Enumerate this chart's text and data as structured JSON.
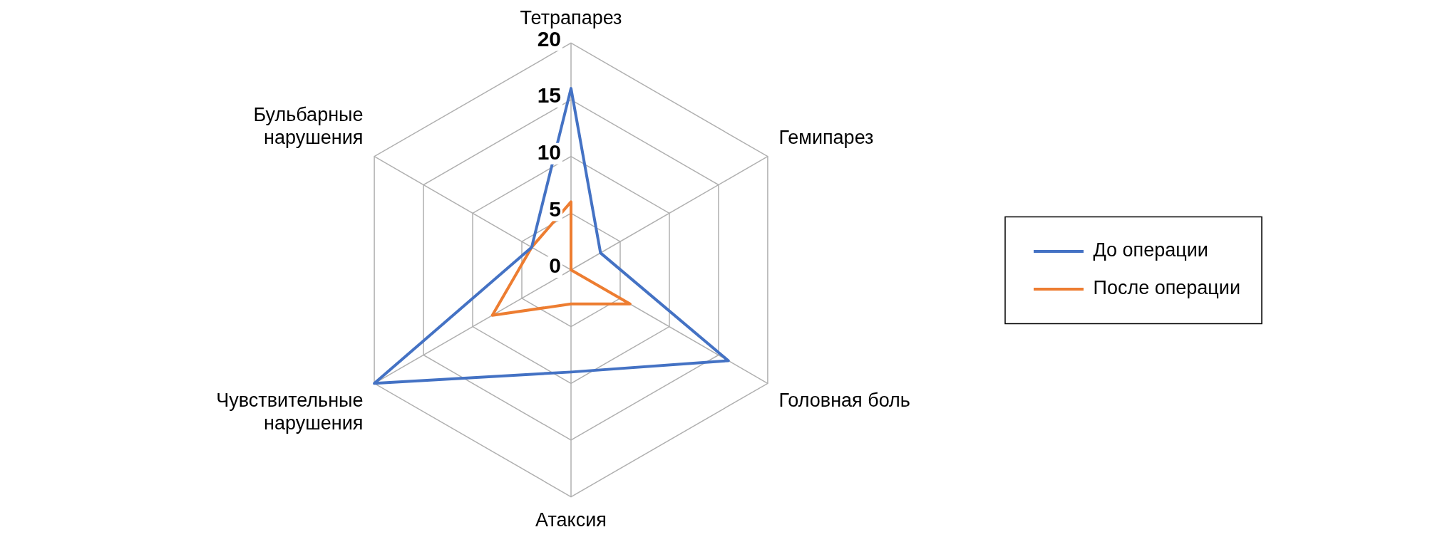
{
  "chart_data": {
    "type": "radar",
    "categories": [
      "Тетрапарез",
      "Гемипарез",
      "Головная боль",
      "Атаксия",
      "Чувствительные нарушения",
      "Бульбарные нарушения"
    ],
    "series": [
      {
        "name": "До операции",
        "color": "#4472c4",
        "values": [
          16,
          3,
          16,
          9,
          20,
          4
        ]
      },
      {
        "name": "После операции",
        "color": "#ed7d31",
        "values": [
          6,
          0,
          6,
          3,
          8,
          4
        ]
      }
    ],
    "ylim": [
      0,
      20
    ],
    "yticks": [
      0,
      5,
      10,
      15,
      20
    ],
    "grid": true,
    "legend": "right",
    "marker": "none"
  }
}
